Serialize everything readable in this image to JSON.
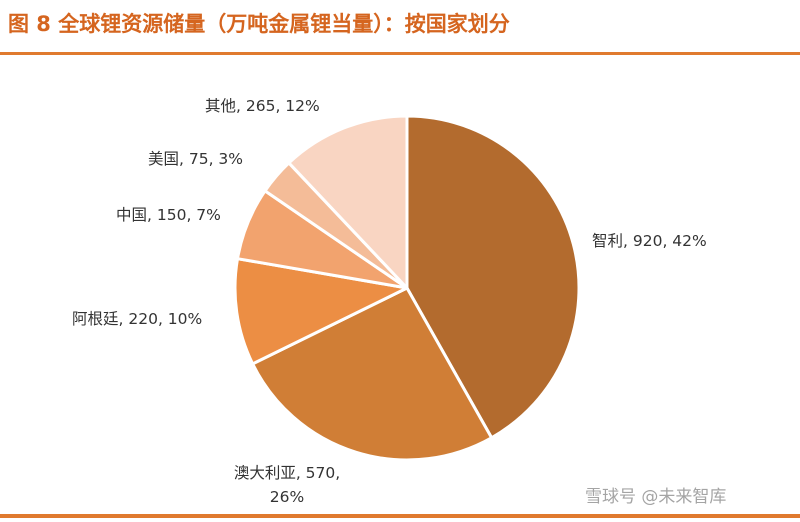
{
  "figure": {
    "title": "图 8  全球锂资源储量（万吨金属锂当量）：按国家划分"
  },
  "watermark": "雪球号 @未来智库",
  "chart_data": {
    "type": "pie",
    "title": "图 8  全球锂资源储量（万吨金属锂当量）：按国家划分",
    "unit": "万吨金属锂当量",
    "start_angle_deg": 0,
    "direction": "clockwise",
    "slices": [
      {
        "label": "智利",
        "value": 920,
        "percent": 42,
        "text": "智利, 920, 42%",
        "color": "#b36b2e"
      },
      {
        "label": "澳大利亚",
        "value": 570,
        "percent": 26,
        "text": "澳大利亚, 570, 26%",
        "color": "#d07e36"
      },
      {
        "label": "阿根廷",
        "value": 220,
        "percent": 10,
        "text": "阿根廷, 220, 10%",
        "color": "#ec8e44"
      },
      {
        "label": "中国",
        "value": 150,
        "percent": 7,
        "text": "中国, 150, 7%",
        "color": "#f2a36e"
      },
      {
        "label": "美国",
        "value": 75,
        "percent": 3,
        "text": "美国, 75, 3%",
        "color": "#f4bc98"
      },
      {
        "label": "其他",
        "value": 265,
        "percent": 12,
        "text": "其他, 265, 12%",
        "color": "#f9d5c2"
      }
    ]
  }
}
